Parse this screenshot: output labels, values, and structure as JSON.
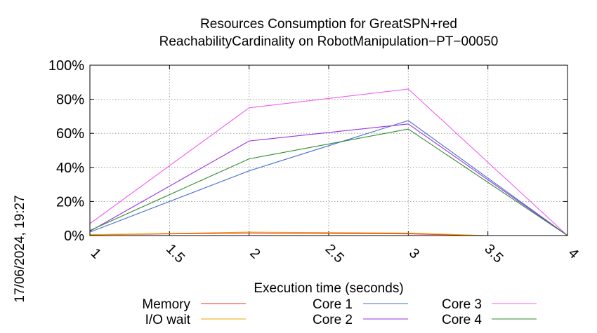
{
  "timestamp": "17/06/2024, 19:27",
  "chart_data": {
    "type": "line",
    "title_lines": [
      "Resources Consumption for GreatSPN+red",
      "ReachabilityCardinality on RobotManipulation−PT−00050"
    ],
    "xlabel": "Execution time (seconds)",
    "ylabel": "",
    "xlim": [
      1,
      4
    ],
    "ylim": [
      0,
      100
    ],
    "x_ticks": [
      {
        "value": 1,
        "label": "1"
      },
      {
        "value": 1.5,
        "label": "1.5"
      },
      {
        "value": 2,
        "label": "2"
      },
      {
        "value": 2.5,
        "label": "2.5"
      },
      {
        "value": 3,
        "label": "3"
      },
      {
        "value": 3.5,
        "label": "3.5"
      },
      {
        "value": 4,
        "label": "4"
      }
    ],
    "y_ticks": [
      {
        "value": 0,
        "label": "0%"
      },
      {
        "value": 20,
        "label": "20%"
      },
      {
        "value": 40,
        "label": "40%"
      },
      {
        "value": 60,
        "label": "60%"
      },
      {
        "value": 80,
        "label": "80%"
      },
      {
        "value": 100,
        "label": "100%"
      }
    ],
    "grid": true,
    "legend_position": "bottom",
    "series": [
      {
        "name": "Memory",
        "color": "#e8332a",
        "x": [
          1,
          2,
          3,
          3.5,
          4
        ],
        "y": [
          0.5,
          1.5,
          1,
          0,
          0
        ]
      },
      {
        "name": "I/O wait",
        "color": "#f4a300",
        "x": [
          1,
          2,
          3,
          3.5,
          4
        ],
        "y": [
          0.5,
          2,
          1.5,
          0,
          0
        ]
      },
      {
        "name": "Core 1",
        "color": "#4a6fd4",
        "x": [
          1,
          2,
          3,
          4
        ],
        "y": [
          2,
          38,
          67.5,
          0
        ]
      },
      {
        "name": "Core 2",
        "color": "#9b30e0",
        "x": [
          1,
          2,
          3,
          4
        ],
        "y": [
          2.5,
          55.5,
          65.5,
          0
        ]
      },
      {
        "name": "Core 3",
        "color": "#f25cf2",
        "x": [
          1,
          2,
          3,
          4
        ],
        "y": [
          7,
          75,
          86,
          0
        ]
      },
      {
        "name": "Core 4",
        "color": "#2e8b2e",
        "x": [
          1,
          2,
          3,
          4
        ],
        "y": [
          3,
          45,
          62.5,
          0
        ]
      }
    ]
  }
}
